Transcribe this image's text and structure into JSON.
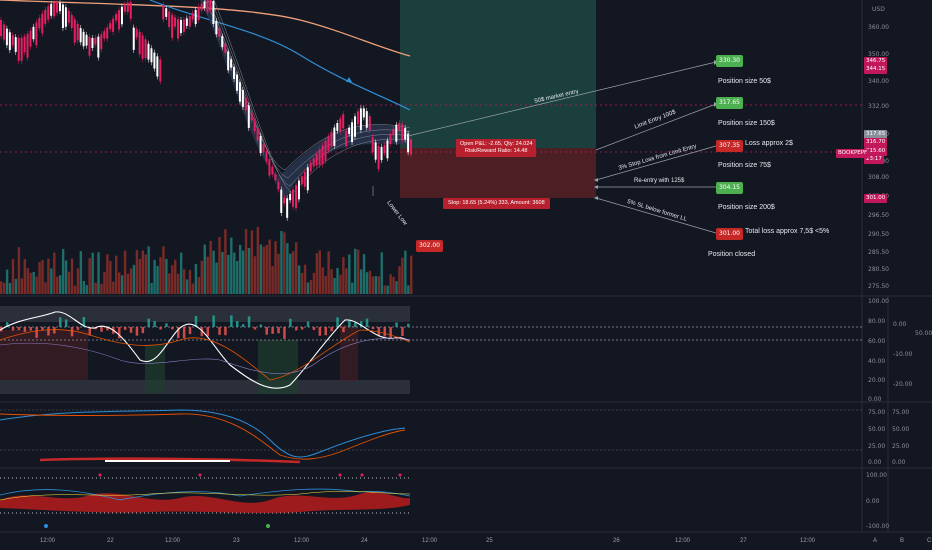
{
  "currency": "USD",
  "price_axis": {
    "ticks": [
      "360.00",
      "350.00",
      "340.00",
      "332.00",
      "324.00",
      "316.00",
      "308.00",
      "302.50",
      "296.50",
      "290.50",
      "285.50",
      "280.50",
      "275.50"
    ],
    "tags": [
      {
        "text": "346.75",
        "color": "#c2185b"
      },
      {
        "text": "344.15",
        "color": "#c2185b"
      },
      {
        "text": "317.65",
        "color": "#888f9a"
      },
      {
        "text": "316.70",
        "color": "#c2185b"
      },
      {
        "text": "315.60",
        "color": "#c2185b"
      },
      {
        "text": "23:17",
        "color": "#c2185b"
      },
      {
        "text": "301.00",
        "color": "#c2185b"
      }
    ],
    "ticker_tag": "BOOKPEPF"
  },
  "osc1_axis": {
    "left": [
      "100.00",
      "80.00",
      "60.00",
      "40.00",
      "20.00",
      "0.00"
    ],
    "right": [
      "0.00",
      "-10.00",
      "-20.00"
    ],
    "right_top": "50.00"
  },
  "osc2_axis": {
    "left": [
      "75.00",
      "50.00",
      "25.00",
      "0.00"
    ],
    "right": [
      "75.00",
      "50.00",
      "25.00",
      "0.00"
    ]
  },
  "osc3_axis": {
    "left": [
      "100.00",
      "0.00",
      "-100.00"
    ]
  },
  "x_axis": [
    "12:00",
    "22",
    "12:00",
    "23",
    "12:00",
    "24",
    "12:00",
    "25",
    "26",
    "12:00",
    "27",
    "12:00"
  ],
  "corner_buttons": [
    "A",
    "B",
    "C"
  ],
  "position_box": {
    "pnl_line1": "Open P&L: -2.65, Qty: 24.024",
    "pnl_line2": "Risk/Reward Ratio: 14.48",
    "stop_text": "Stop: 18.65 (5.24%) 333, Amount: 3608"
  },
  "annotations": {
    "lower_low": "Lower Low",
    "lower_low_price": "302.00",
    "market_entry": "50$ market entry",
    "limit_entry": "Limit Entry 100$",
    "stop_loss": "3% Stop Loss from Limit Entry",
    "reentry": "Re-entry with 125$",
    "sl_below": "5% SL below former LL"
  },
  "right_notes": [
    {
      "chip": "330.30",
      "chip_color": "#4caf50",
      "label": "Position size 50$"
    },
    {
      "chip": "317.65",
      "chip_color": "#4caf50",
      "label": "Position size 150$"
    },
    {
      "chip": "307.35",
      "chip_color": "#c62828",
      "label": "Loss approx 2$",
      "label2": "Position size 75$"
    },
    {
      "chip": "304.15",
      "chip_color": "#4caf50",
      "label": "Position size 200$"
    },
    {
      "chip": "301.00",
      "chip_color": "#c62828",
      "label": "Total loss approx 7,5$ <5%",
      "label2": "Position closed"
    }
  ]
}
